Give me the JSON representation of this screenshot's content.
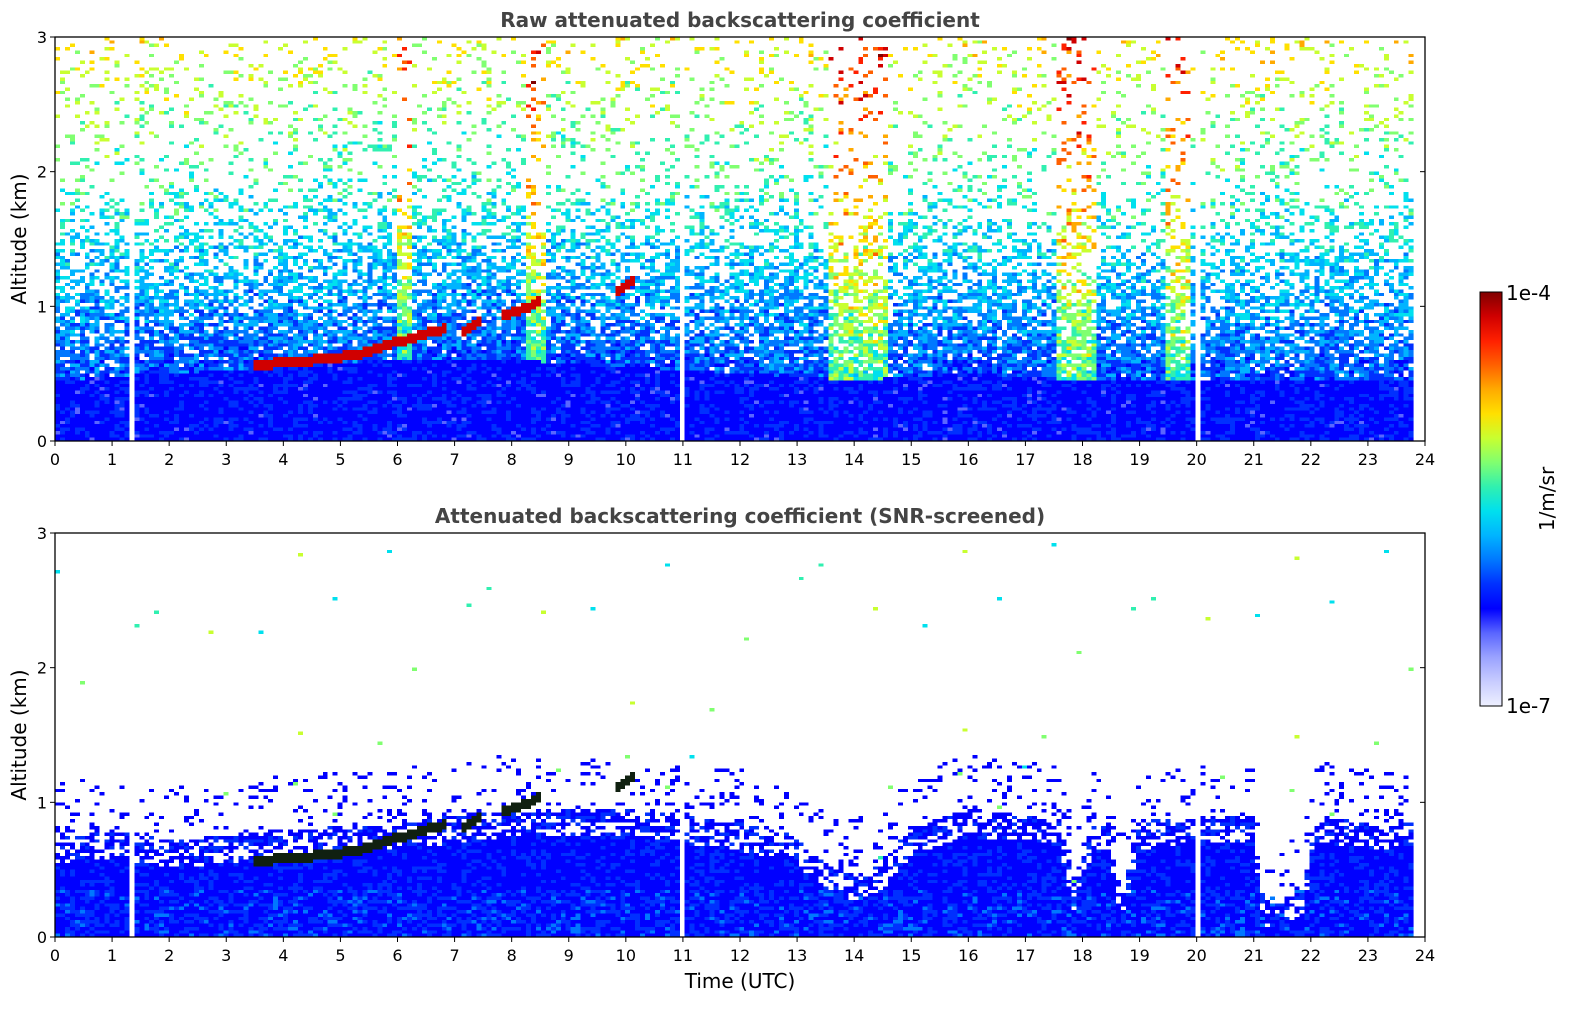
{
  "colors": {
    "colormap": [
      "#eef0ff",
      "#c8ccff",
      "#9aa2ff",
      "#5a66ff",
      "#0000ff",
      "#0030ff",
      "#0078ff",
      "#00b4ff",
      "#00e0ee",
      "#30f0b0",
      "#80ff70",
      "#c8ff30",
      "#ffe000",
      "#ffaa00",
      "#ff6000",
      "#ff2000",
      "#d00000",
      "#800000"
    ],
    "background": "#ffffff",
    "title": "#444444"
  },
  "colorbar": {
    "label": "1/m/sr",
    "max_label": "1e-4",
    "min_label": "1e-7",
    "scale": "log",
    "range": [
      1e-07,
      0.0001
    ],
    "placement": "right"
  },
  "chart_data": [
    {
      "type": "heatmap",
      "title": "Raw attenuated backscattering coefficient",
      "xlabel": "",
      "ylabel": "Altitude (km)",
      "xlim": [
        0,
        24
      ],
      "ylim": [
        0,
        3
      ],
      "x_ticks": [
        "0",
        "1",
        "2",
        "3",
        "4",
        "5",
        "6",
        "7",
        "8",
        "9",
        "10",
        "11",
        "12",
        "13",
        "14",
        "15",
        "16",
        "17",
        "18",
        "19",
        "20",
        "21",
        "22",
        "23",
        "24"
      ],
      "y_ticks": [
        "0",
        "1",
        "2",
        "3"
      ],
      "data_extent_x": [
        0,
        23.8
      ],
      "noise_level": 0.55,
      "boundary_layer_top_km": [
        [
          0,
          0.45
        ],
        [
          2,
          0.5
        ],
        [
          4,
          0.55
        ],
        [
          6,
          0.6
        ],
        [
          8,
          0.6
        ],
        [
          10,
          0.55
        ],
        [
          12,
          0.5
        ],
        [
          14,
          0.45
        ],
        [
          16,
          0.5
        ],
        [
          18,
          0.45
        ],
        [
          20,
          0.45
        ],
        [
          22,
          0.45
        ],
        [
          23.8,
          0.45
        ]
      ],
      "enhanced_noise_columns": [
        [
          6,
          6.3
        ],
        [
          8.3,
          8.6
        ],
        [
          13.6,
          14.6
        ],
        [
          17.6,
          18.3
        ],
        [
          19.5,
          19.9
        ]
      ],
      "cloud_segments": [
        [
          3.5,
          4.2,
          0.58,
          0.6
        ],
        [
          4.2,
          5.3,
          0.6,
          0.65
        ],
        [
          5.3,
          6.0,
          0.65,
          0.75
        ],
        [
          6.0,
          6.8,
          0.75,
          0.85
        ],
        [
          7.2,
          7.4,
          0.85,
          0.9
        ],
        [
          7.9,
          8.5,
          0.95,
          1.05
        ],
        [
          9.9,
          10.1,
          1.15,
          1.2
        ]
      ],
      "dropout_columns": [
        1.33,
        11.0,
        20.05
      ]
    },
    {
      "type": "heatmap",
      "title": "Attenuated backscattering coefficient (SNR-screened)",
      "xlabel": "Time (UTC)",
      "ylabel": "Altitude (km)",
      "xlim": [
        0,
        24
      ],
      "ylim": [
        0,
        3
      ],
      "x_ticks": [
        "0",
        "1",
        "2",
        "3",
        "4",
        "5",
        "6",
        "7",
        "8",
        "9",
        "10",
        "11",
        "12",
        "13",
        "14",
        "15",
        "16",
        "17",
        "18",
        "19",
        "20",
        "21",
        "22",
        "23",
        "24"
      ],
      "y_ticks": [
        "0",
        "1",
        "2",
        "3"
      ],
      "data_extent_x": [
        0,
        23.8
      ],
      "screened_top_km": [
        [
          0,
          0.75
        ],
        [
          1,
          0.78
        ],
        [
          2,
          0.72
        ],
        [
          3,
          0.75
        ],
        [
          4,
          0.8
        ],
        [
          5,
          0.82
        ],
        [
          6,
          0.85
        ],
        [
          7,
          0.9
        ],
        [
          8,
          0.95
        ],
        [
          9,
          0.95
        ],
        [
          10,
          0.95
        ],
        [
          11,
          0.9
        ],
        [
          12,
          0.85
        ],
        [
          13,
          0.75
        ],
        [
          13.5,
          0.55
        ],
        [
          14,
          0.48
        ],
        [
          14.5,
          0.55
        ],
        [
          15,
          0.8
        ],
        [
          16,
          0.95
        ],
        [
          17,
          0.9
        ],
        [
          17.6,
          0.9
        ],
        [
          17.9,
          0.35
        ],
        [
          18.2,
          0.85
        ],
        [
          18.5,
          0.85
        ],
        [
          18.7,
          0.3
        ],
        [
          19,
          0.85
        ],
        [
          20,
          0.9
        ],
        [
          21,
          0.9
        ],
        [
          21.2,
          0.28
        ],
        [
          21.9,
          0.35
        ],
        [
          22.1,
          0.9
        ],
        [
          23,
          0.85
        ],
        [
          23.8,
          0.85
        ]
      ],
      "cloud_segments": [
        [
          3.5,
          4.2,
          0.58,
          0.6
        ],
        [
          4.2,
          5.3,
          0.6,
          0.65
        ],
        [
          5.3,
          6.0,
          0.65,
          0.75
        ],
        [
          6.0,
          6.8,
          0.75,
          0.85
        ],
        [
          7.2,
          7.4,
          0.85,
          0.9
        ],
        [
          7.9,
          8.5,
          0.95,
          1.05
        ],
        [
          9.9,
          10.1,
          1.15,
          1.2
        ]
      ],
      "dropout_columns": [
        1.33,
        11.0,
        20.05
      ]
    }
  ]
}
